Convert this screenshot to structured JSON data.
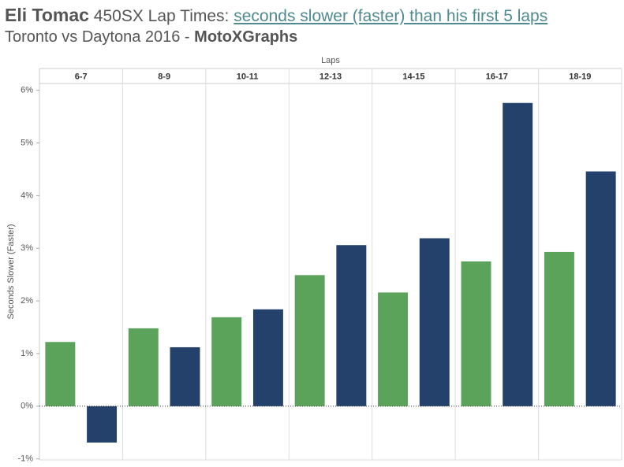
{
  "chart_data": {
    "type": "bar",
    "title": [
      "Eli Tomac",
      "450SX Lap Times:",
      "seconds slower (faster) than his first 5 laps"
    ],
    "subtitle": [
      "Toronto vs Daytona 2016 -",
      "MotoXGraphs"
    ],
    "x_label": "Laps",
    "y_label": "Seconds Slower (Faster)",
    "categories": [
      "6-7",
      "8-9",
      "10-11",
      "12-13",
      "14-15",
      "16-17",
      "18-19"
    ],
    "series": [
      {
        "color": "#5ba35a",
        "values": [
          1.22,
          1.48,
          1.69,
          2.49,
          2.16,
          2.75,
          2.93
        ]
      },
      {
        "color": "#23416b",
        "values": [
          -0.69,
          1.12,
          1.84,
          3.06,
          3.19,
          5.76,
          4.46
        ]
      }
    ],
    "ylim": [
      -1.02,
      6.13
    ],
    "yticks": [
      {
        "value": -1,
        "label": "-1%"
      },
      {
        "value": 0,
        "label": "0%"
      },
      {
        "value": 1,
        "label": "1%"
      },
      {
        "value": 2,
        "label": "2%"
      },
      {
        "value": 3,
        "label": "3%"
      },
      {
        "value": 4,
        "label": "4%"
      },
      {
        "value": 5,
        "label": "5%"
      },
      {
        "value": 6,
        "label": "6%"
      }
    ],
    "grid": true
  }
}
